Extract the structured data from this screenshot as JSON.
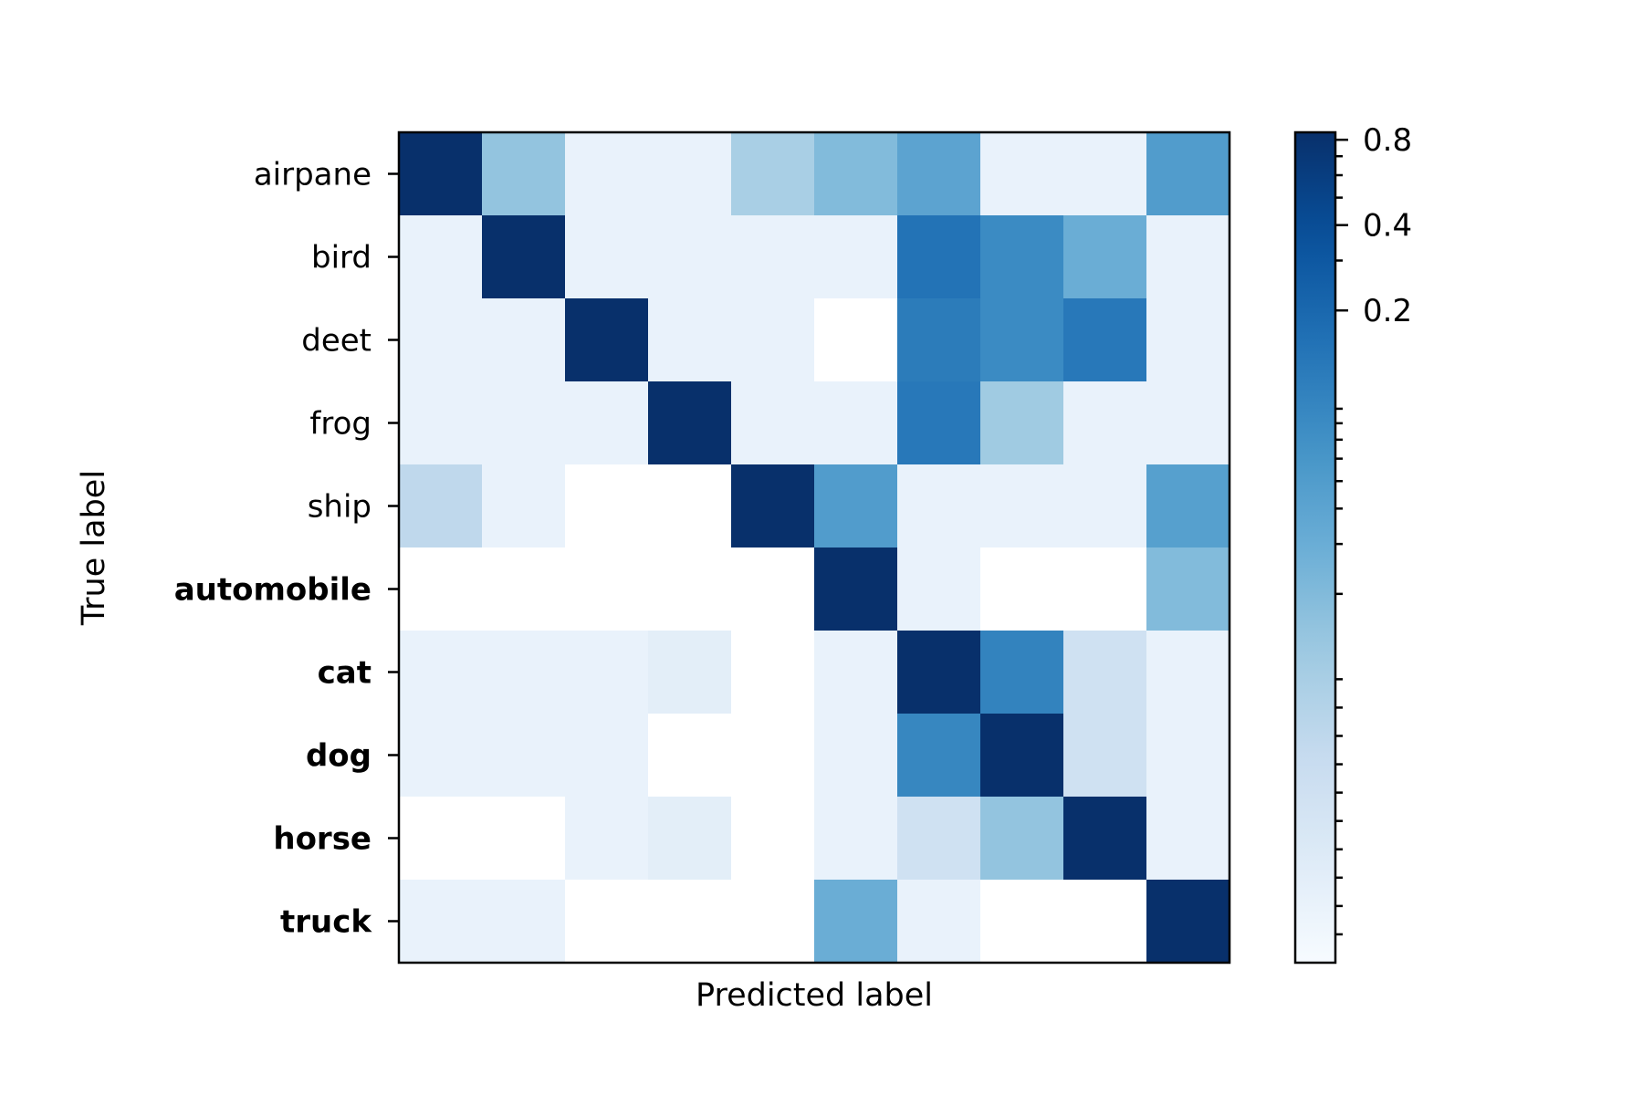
{
  "chart_data": {
    "type": "heatmap",
    "xlabel": "Predicted label",
    "ylabel": "True label",
    "rows": [
      {
        "label": "airpane",
        "bold": false
      },
      {
        "label": "bird",
        "bold": false
      },
      {
        "label": "deet",
        "bold": false
      },
      {
        "label": "frog",
        "bold": false
      },
      {
        "label": "ship",
        "bold": false
      },
      {
        "label": "automobile",
        "bold": true
      },
      {
        "label": "cat",
        "bold": true
      },
      {
        "label": "dog",
        "bold": true
      },
      {
        "label": "horse",
        "bold": true
      },
      {
        "label": "truck",
        "bold": true
      }
    ],
    "values": [
      [
        0.85,
        0.015,
        0.002,
        0.002,
        0.01,
        0.02,
        0.04,
        0.002,
        0.002,
        0.05
      ],
      [
        0.002,
        0.85,
        0.002,
        0.002,
        0.002,
        0.002,
        0.15,
        0.08,
        0.03,
        0.002
      ],
      [
        0.002,
        0.002,
        0.85,
        0.002,
        0.002,
        0.0,
        0.12,
        0.08,
        0.13,
        0.002
      ],
      [
        0.002,
        0.002,
        0.002,
        0.85,
        0.002,
        0.002,
        0.13,
        0.012,
        0.002,
        0.002
      ],
      [
        0.008,
        0.002,
        0.0,
        0.0,
        0.85,
        0.05,
        0.002,
        0.002,
        0.002,
        0.045
      ],
      [
        0.0,
        0.0,
        0.0,
        0.0,
        0.0,
        0.85,
        0.002,
        0.0,
        0.0,
        0.02
      ],
      [
        0.002,
        0.002,
        0.002,
        0.003,
        0.0,
        0.002,
        0.85,
        0.1,
        0.006,
        0.002
      ],
      [
        0.002,
        0.002,
        0.002,
        0.0,
        0.0,
        0.002,
        0.09,
        0.85,
        0.006,
        0.002
      ],
      [
        0.0,
        0.0,
        0.002,
        0.003,
        0.0,
        0.002,
        0.006,
        0.015,
        0.85,
        0.002
      ],
      [
        0.002,
        0.002,
        0.0,
        0.0,
        0.0,
        0.03,
        0.002,
        0.0,
        0.0,
        0.85
      ]
    ],
    "colorbar": {
      "scale": "symlog",
      "range": [
        0,
        0.85
      ],
      "ticks": [
        {
          "value": 0.8,
          "label": "0.8"
        },
        {
          "value": 0.4,
          "label": "0.4"
        },
        {
          "value": 0.2,
          "label": "0.2"
        }
      ],
      "minor_ticks": [
        0.001,
        0.002,
        0.003,
        0.004,
        0.005,
        0.006,
        0.007,
        0.008,
        0.009,
        0.01,
        0.02,
        0.03,
        0.04,
        0.05,
        0.06,
        0.07,
        0.08,
        0.09,
        0.3,
        0.5,
        0.6,
        0.7
      ],
      "cmap": "Blues",
      "colors": [
        "#f7fbff",
        "#deebf7",
        "#c6dbef",
        "#9ecae1",
        "#6baed6",
        "#4292c6",
        "#2171b5",
        "#08519c",
        "#08306b"
      ]
    }
  }
}
